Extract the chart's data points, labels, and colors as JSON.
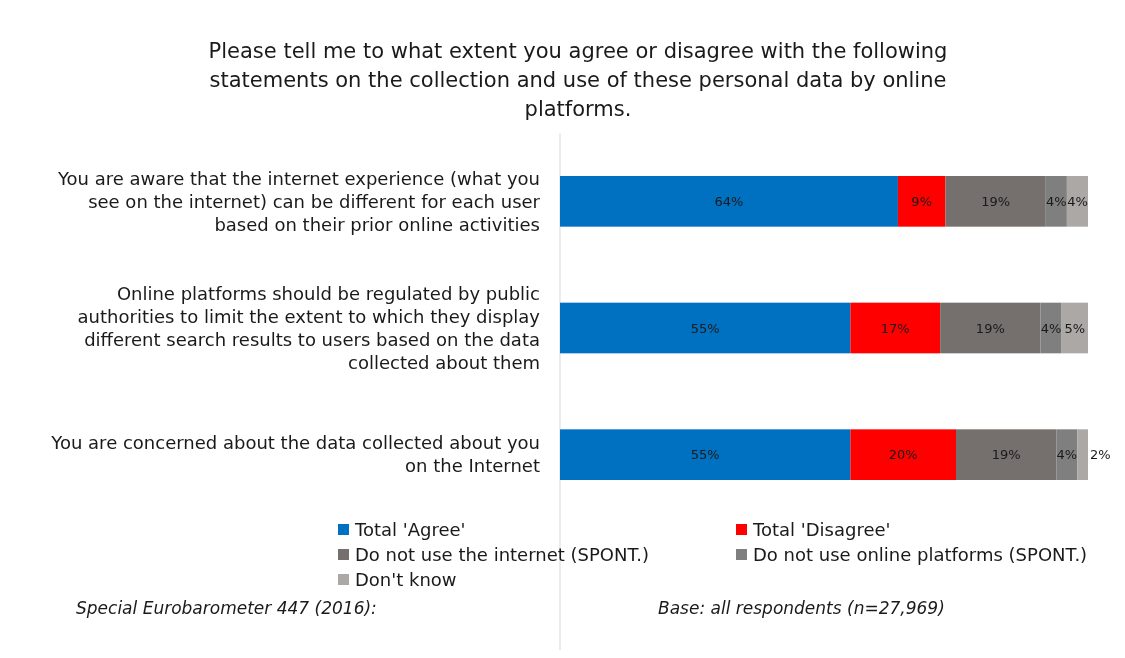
{
  "chart_data": {
    "type": "bar",
    "orientation": "horizontal",
    "stacked": true,
    "legend": "bottom",
    "title": "Please tell me to what extent you agree or disagree with the following statements on the collection and use of these personal data by online platforms.",
    "categories": [
      "You are aware that the internet experience (what you see on the internet) can be different for each user based on their prior online activities",
      "Online platforms should be regulated by public authorities to limit the extent to which they display different search results to users based on the data collected about them",
      "You are concerned about the data collected about you on the Internet"
    ],
    "series": [
      {
        "name": "Total 'Agree'",
        "color": "#0070c0",
        "values": [
          64,
          55,
          55
        ],
        "value_labels": [
          "64%",
          "55%",
          "55%"
        ]
      },
      {
        "name": "Total 'Disagree'",
        "color": "#ff0000",
        "values": [
          9,
          17,
          20
        ],
        "value_labels": [
          "9%",
          "17%",
          "20%"
        ]
      },
      {
        "name": "Do not use the internet (SPONT.)",
        "color": "#75706e",
        "values": [
          19,
          19,
          19
        ],
        "value_labels": [
          "19%",
          "19%",
          "19%"
        ]
      },
      {
        "name": "Do not use online platforms (SPONT.)",
        "color": "#7f7f7f",
        "values": [
          4,
          4,
          4
        ],
        "value_labels": [
          "4%",
          "4%",
          "4%"
        ]
      },
      {
        "name": "Don't know",
        "color": "#aba8a6",
        "values": [
          4,
          5,
          2
        ],
        "value_labels": [
          "4%",
          "5%",
          "2%"
        ]
      }
    ],
    "annotations": [
      "Special Eurobarometer 447 (2016):",
      "Base: all respondents (n=27,969)"
    ]
  }
}
